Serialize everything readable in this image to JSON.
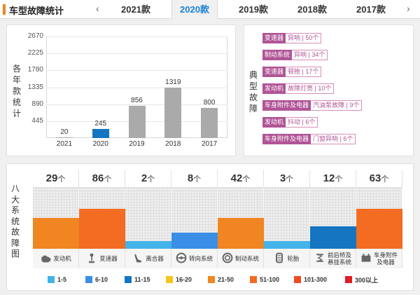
{
  "header": {
    "title": "车型故障统计",
    "prev_arrow": "‹",
    "next_arrow": "›",
    "tabs": [
      {
        "label": "2021款",
        "active": false
      },
      {
        "label": "2020款",
        "active": true
      },
      {
        "label": "2019款",
        "active": false
      },
      {
        "label": "2018款",
        "active": false
      },
      {
        "label": "2017款",
        "active": false
      }
    ]
  },
  "yearly": {
    "ylabel": "各年款统计",
    "chart_data": {
      "type": "bar",
      "categories": [
        "2021",
        "2020",
        "2019",
        "2018",
        "2017"
      ],
      "values": [
        20,
        245,
        856,
        1319,
        800
      ],
      "highlight_category": "2020",
      "ylim": [
        0,
        2670
      ],
      "yticks": [
        "2670",
        "2225",
        "1780",
        "1335",
        "890",
        "445"
      ],
      "colors": {
        "default": "#aaaaaa",
        "highlight": "#1575c0"
      }
    }
  },
  "typical": {
    "label": "典型故障",
    "faults": [
      {
        "system": "变速器",
        "fault": "异响",
        "count": "50个"
      },
      {
        "system": "制动系统",
        "fault": "异响",
        "count": "34个"
      },
      {
        "system": "变速器",
        "fault": "顿挫",
        "count": "17个"
      },
      {
        "system": "发动机",
        "fault": "故障灯亮",
        "count": "10个"
      },
      {
        "system": "车身附件及电器",
        "fault": "汽油泵故障",
        "count": "9个"
      },
      {
        "system": "发动机",
        "fault": "抖动",
        "count": "6个"
      },
      {
        "system": "车身附件及电器",
        "fault": "门窗异响",
        "count": "6个"
      }
    ]
  },
  "systems": {
    "label": "八大系统故障图",
    "unit": "个",
    "items": [
      {
        "count": "29",
        "name": "发动机",
        "icon": "engine-icon",
        "level": 0.5,
        "color": "#f08521"
      },
      {
        "count": "86",
        "name": "变速器",
        "icon": "gear-shift-icon",
        "level": 0.65,
        "color": "#f36c21"
      },
      {
        "count": "2",
        "name": "离合器",
        "icon": "clutch-pedal-icon",
        "level": 0.13,
        "color": "#44b3e8"
      },
      {
        "count": "8",
        "name": "转向系统",
        "icon": "steering-wheel-icon",
        "level": 0.26,
        "color": "#3a8ee6"
      },
      {
        "count": "42",
        "name": "制动系统",
        "icon": "brake-disc-icon",
        "level": 0.5,
        "color": "#f08521"
      },
      {
        "count": "3",
        "name": "轮胎",
        "icon": "tire-icon",
        "level": 0.13,
        "color": "#44b3e8"
      },
      {
        "count": "12",
        "name": "前后桥及悬挂系统",
        "icon": "suspension-icon",
        "level": 0.37,
        "color": "#1575c0"
      },
      {
        "count": "63",
        "name": "车身附件及电器",
        "icon": "car-battery-icon",
        "level": 0.65,
        "color": "#f36c21"
      }
    ]
  },
  "legend": [
    {
      "label": "1-5",
      "color": "#44b3e8"
    },
    {
      "label": "6-10",
      "color": "#3a8ee6"
    },
    {
      "label": "11-15",
      "color": "#1575c0"
    },
    {
      "label": "16-20",
      "color": "#f5c518"
    },
    {
      "label": "21-50",
      "color": "#f08521"
    },
    {
      "label": "51-100",
      "color": "#f36c21"
    },
    {
      "label": "101-300",
      "color": "#ef4a1f"
    },
    {
      "label": "300以上",
      "color": "#e11c24"
    }
  ]
}
